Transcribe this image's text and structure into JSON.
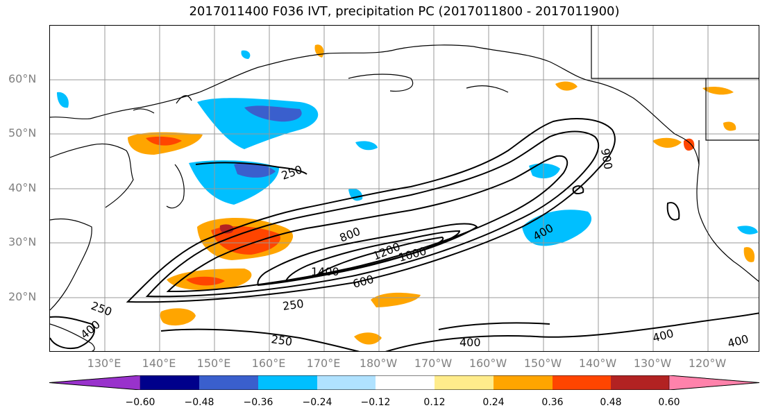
{
  "title": "2017011400 F036 IVT, precipitation PC (2017011800 - 2017011900)",
  "lat_labels": [
    "60°N",
    "50°N",
    "40°N",
    "30°N",
    "20°N"
  ],
  "lon_labels": [
    "130°E",
    "140°E",
    "150°E",
    "160°E",
    "170°E",
    "180°W",
    "170°W",
    "160°W",
    "150°W",
    "140°W",
    "130°W",
    "120°W"
  ],
  "contour_labels": [
    "250",
    "800",
    "1200",
    "1000",
    "1400",
    "600",
    "250",
    "400",
    "900",
    "250",
    "400",
    "250",
    "400",
    "400",
    "400"
  ],
  "colorbar": {
    "ticks": [
      "−0.60",
      "−0.48",
      "−0.36",
      "−0.24",
      "−0.12",
      "0.12",
      "0.24",
      "0.36",
      "0.48",
      "0.60"
    ],
    "colors": [
      "#9932CC",
      "#00008B",
      "#3A5FCD",
      "#00BFFF",
      "#B0E2FF",
      "#FFFFFF",
      "#FFEC8B",
      "#FFA500",
      "#FF4500",
      "#B22222",
      "#FF82AB"
    ]
  }
}
